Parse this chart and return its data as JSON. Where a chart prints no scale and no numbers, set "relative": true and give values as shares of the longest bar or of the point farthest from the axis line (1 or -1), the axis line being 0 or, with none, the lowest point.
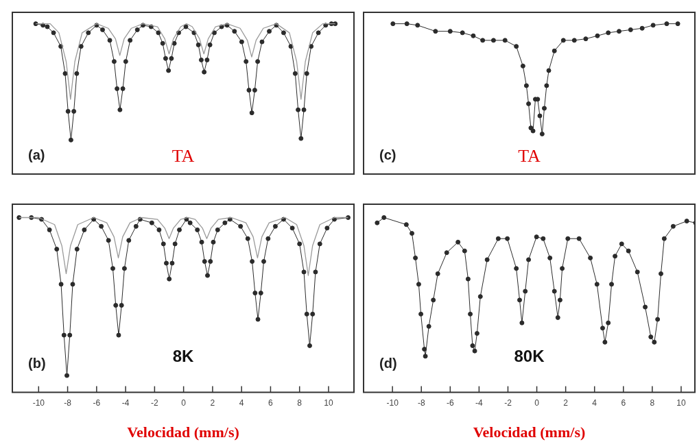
{
  "chart_data": [
    {
      "type": "line",
      "xlim": [
        -11.86,
        11.8
      ],
      "xticks": [
        -10,
        -8,
        -6,
        -4,
        -2,
        0,
        2,
        4,
        6,
        8,
        10
      ],
      "tick_labels": false,
      "relative": true,
      "annotations": [
        "(a)",
        "TA"
      ],
      "series": [
        {
          "marker": "circle",
          "color": "#2b2b2b",
          "x": [
            -10.2,
            -9.7,
            -9.4,
            -8.97,
            -8.47,
            -8.17,
            -7.97,
            -7.77,
            -7.57,
            -7.37,
            -7.07,
            -6.57,
            -6.0,
            -5.59,
            -5.09,
            -4.79,
            -4.59,
            -4.39,
            -4.19,
            -3.99,
            -3.69,
            -3.19,
            -2.8,
            -2.24,
            -1.74,
            -1.44,
            -1.24,
            -1.04,
            -0.84,
            -0.64,
            -0.34,
            0.16,
            0.72,
            1.02,
            1.22,
            1.42,
            1.62,
            1.82,
            2.12,
            2.62,
            3.0,
            3.51,
            4.01,
            4.31,
            4.51,
            4.71,
            4.91,
            5.11,
            5.41,
            5.91,
            6.4,
            6.9,
            7.4,
            7.7,
            7.9,
            8.1,
            8.3,
            8.5,
            8.8,
            9.3,
            9.8,
            10.2,
            10.46
          ],
          "values": [
            1.0,
            0.99,
            0.98,
            0.94,
            0.85,
            0.67,
            0.42,
            0.23,
            0.42,
            0.67,
            0.85,
            0.94,
            0.99,
            0.96,
            0.89,
            0.75,
            0.57,
            0.43,
            0.57,
            0.75,
            0.89,
            0.96,
            0.99,
            0.98,
            0.94,
            0.87,
            0.77,
            0.69,
            0.77,
            0.87,
            0.94,
            0.98,
            0.94,
            0.86,
            0.76,
            0.68,
            0.76,
            0.86,
            0.94,
            0.98,
            0.99,
            0.95,
            0.88,
            0.75,
            0.56,
            0.41,
            0.56,
            0.75,
            0.88,
            0.95,
            0.99,
            0.94,
            0.85,
            0.67,
            0.43,
            0.24,
            0.43,
            0.67,
            0.85,
            0.94,
            0.99,
            1.0,
            1.0
          ]
        },
        {
          "marker": "none",
          "color": "#9a9a9a",
          "x": [
            -10.2,
            -9.2,
            -8.6,
            -8.1,
            -7.8,
            -7.5,
            -7.0,
            -6.0,
            -5.2,
            -4.7,
            -4.4,
            -4.1,
            -3.6,
            -2.8,
            -1.8,
            -1.3,
            -1.0,
            -0.7,
            -0.2,
            0.2,
            0.6,
            1.1,
            1.4,
            1.7,
            2.2,
            3.0,
            3.9,
            4.4,
            4.7,
            5.0,
            5.5,
            6.4,
            7.3,
            7.8,
            8.1,
            8.4,
            8.9,
            9.6,
            10.46
          ],
          "values": [
            1.0,
            1.0,
            0.94,
            0.75,
            0.5,
            0.75,
            0.94,
            1.0,
            0.97,
            0.9,
            0.79,
            0.9,
            0.97,
            1.0,
            0.98,
            0.9,
            0.8,
            0.9,
            0.98,
            1.0,
            0.98,
            0.9,
            0.8,
            0.9,
            0.98,
            1.0,
            0.97,
            0.89,
            0.78,
            0.89,
            0.97,
            1.0,
            0.94,
            0.75,
            0.5,
            0.75,
            0.94,
            1.0,
            1.0
          ]
        }
      ]
    },
    {
      "type": "line",
      "xlim": [
        -12.05,
        11.0
      ],
      "xticks": [
        -10,
        -8,
        -6,
        -4,
        -2,
        0,
        2,
        4,
        6,
        8,
        10
      ],
      "tick_labels": false,
      "relative": true,
      "annotations": [
        "(c)",
        "TA"
      ],
      "series": [
        {
          "marker": "circle",
          "color": "#2b2b2b",
          "x": [
            -9.97,
            -9.0,
            -8.26,
            -7.02,
            -6.0,
            -5.15,
            -4.4,
            -3.75,
            -3.0,
            -2.2,
            -1.42,
            -0.96,
            -0.72,
            -0.57,
            -0.41,
            -0.26,
            -0.1,
            0.06,
            0.21,
            0.37,
            0.52,
            0.68,
            0.83,
            1.22,
            1.84,
            2.6,
            3.39,
            4.2,
            4.95,
            5.7,
            6.5,
            7.3,
            8.06,
            9.0,
            9.77
          ],
          "values": [
            1.0,
            1.0,
            0.99,
            0.95,
            0.95,
            0.94,
            0.92,
            0.89,
            0.89,
            0.89,
            0.85,
            0.72,
            0.59,
            0.47,
            0.31,
            0.29,
            0.5,
            0.5,
            0.39,
            0.27,
            0.44,
            0.59,
            0.69,
            0.82,
            0.89,
            0.89,
            0.9,
            0.92,
            0.94,
            0.95,
            0.96,
            0.97,
            0.99,
            1.0,
            1.0
          ]
        }
      ]
    },
    {
      "type": "line",
      "xlim": [
        -11.86,
        11.8
      ],
      "xticks": [
        -10,
        -8,
        -6,
        -4,
        -2,
        0,
        2,
        4,
        6,
        8,
        10
      ],
      "tick_labels": "x",
      "relative": true,
      "xlabel": "Velocidad (mm/s)",
      "annotations": [
        "(b)",
        "8K"
      ],
      "series": [
        {
          "marker": "circle",
          "color": "#2b2b2b",
          "x": [
            -11.35,
            -10.5,
            -9.8,
            -9.25,
            -8.75,
            -8.45,
            -8.25,
            -8.05,
            -7.85,
            -7.65,
            -7.35,
            -6.85,
            -6.2,
            -5.68,
            -5.18,
            -4.88,
            -4.68,
            -4.48,
            -4.28,
            -4.08,
            -3.78,
            -3.28,
            -3.0,
            -2.19,
            -1.69,
            -1.39,
            -1.19,
            -0.99,
            -0.79,
            -0.59,
            -0.29,
            0.2,
            0.45,
            0.95,
            1.25,
            1.45,
            1.65,
            1.85,
            2.05,
            2.35,
            2.85,
            3.2,
            3.93,
            4.43,
            4.73,
            4.93,
            5.13,
            5.33,
            5.53,
            5.83,
            6.33,
            6.9,
            7.5,
            8.0,
            8.3,
            8.5,
            8.7,
            8.9,
            9.1,
            9.4,
            9.9,
            10.4,
            11.35
          ],
          "values": [
            1.0,
            1.0,
            0.99,
            0.93,
            0.82,
            0.62,
            0.33,
            0.1,
            0.33,
            0.62,
            0.82,
            0.93,
            0.99,
            0.95,
            0.87,
            0.71,
            0.5,
            0.33,
            0.5,
            0.71,
            0.87,
            0.95,
            0.99,
            0.97,
            0.93,
            0.85,
            0.74,
            0.65,
            0.74,
            0.85,
            0.93,
            0.99,
            0.97,
            0.93,
            0.86,
            0.75,
            0.67,
            0.75,
            0.86,
            0.93,
            0.97,
            0.99,
            0.95,
            0.88,
            0.75,
            0.57,
            0.42,
            0.57,
            0.75,
            0.88,
            0.95,
            0.99,
            0.94,
            0.85,
            0.69,
            0.45,
            0.27,
            0.45,
            0.69,
            0.85,
            0.94,
            0.99,
            1.0
          ]
        },
        {
          "marker": "none",
          "color": "#9a9a9a",
          "x": [
            -11.35,
            -10.0,
            -8.9,
            -8.4,
            -8.1,
            -7.8,
            -7.3,
            -6.2,
            -5.3,
            -4.8,
            -4.5,
            -4.2,
            -3.7,
            -2.9,
            -1.8,
            -1.3,
            -1.0,
            -0.7,
            -0.2,
            0.3,
            0.8,
            1.3,
            1.6,
            1.9,
            2.4,
            3.3,
            4.3,
            4.8,
            5.1,
            5.4,
            5.9,
            7.0,
            7.8,
            8.3,
            8.6,
            8.9,
            9.4,
            10.4,
            11.35
          ],
          "values": [
            1.0,
            1.0,
            0.96,
            0.84,
            0.68,
            0.84,
            0.96,
            1.0,
            0.97,
            0.89,
            0.77,
            0.89,
            0.97,
            1.0,
            0.99,
            0.94,
            0.88,
            0.94,
            0.99,
            1.0,
            0.99,
            0.94,
            0.88,
            0.94,
            0.99,
            1.0,
            0.97,
            0.89,
            0.77,
            0.89,
            0.97,
            1.0,
            0.96,
            0.84,
            0.67,
            0.84,
            0.96,
            1.0,
            1.0
          ]
        }
      ]
    },
    {
      "type": "line",
      "xlim": [
        -12.05,
        11.0
      ],
      "xticks": [
        -10,
        -8,
        -6,
        -4,
        -2,
        0,
        2,
        4,
        6,
        8,
        10
      ],
      "tick_labels": "x",
      "relative": true,
      "xlabel": "Velocidad (mm/s)",
      "annotations": [
        "(d)",
        "80K"
      ],
      "series": [
        {
          "marker": "circle",
          "color": "#2b2b2b",
          "x": [
            -11.06,
            -10.59,
            -9.04,
            -8.65,
            -8.41,
            -8.18,
            -8.03,
            -7.79,
            -7.72,
            -7.48,
            -7.17,
            -6.86,
            -6.24,
            -5.46,
            -5.0,
            -4.76,
            -4.61,
            -4.45,
            -4.3,
            -4.14,
            -3.91,
            -3.44,
            -2.67,
            -2.04,
            -1.42,
            -1.19,
            -1.03,
            -0.8,
            -0.57,
            -0.02,
            0.44,
            0.91,
            1.22,
            1.46,
            1.61,
            1.76,
            2.15,
            2.93,
            3.71,
            4.17,
            4.56,
            4.72,
            4.95,
            5.18,
            5.42,
            5.88,
            6.35,
            6.97,
            7.51,
            7.9,
            8.14,
            8.37,
            8.6,
            8.83,
            9.45,
            10.39,
            11.0
          ],
          "values": [
            0.97,
            1.0,
            0.96,
            0.91,
            0.77,
            0.62,
            0.45,
            0.25,
            0.21,
            0.38,
            0.53,
            0.68,
            0.8,
            0.86,
            0.81,
            0.65,
            0.45,
            0.27,
            0.24,
            0.34,
            0.55,
            0.76,
            0.88,
            0.88,
            0.71,
            0.53,
            0.4,
            0.58,
            0.76,
            0.89,
            0.88,
            0.77,
            0.58,
            0.43,
            0.53,
            0.71,
            0.88,
            0.88,
            0.77,
            0.62,
            0.37,
            0.29,
            0.4,
            0.62,
            0.78,
            0.85,
            0.81,
            0.69,
            0.49,
            0.32,
            0.29,
            0.42,
            0.68,
            0.88,
            0.95,
            0.98,
            0.97
          ]
        }
      ]
    }
  ]
}
